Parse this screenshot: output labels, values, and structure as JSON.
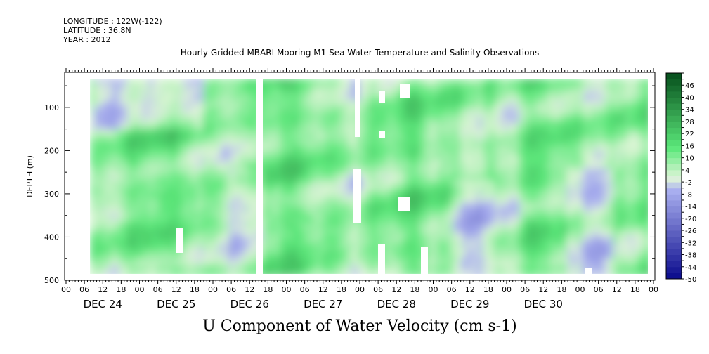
{
  "header": {
    "longitude": "LONGITUDE : 122W(-122)",
    "latitude": "LATITUDE : 36.8N",
    "year": "YEAR : 2012"
  },
  "chart_data": {
    "type": "heatmap",
    "title": "Hourly Gridded MBARI Mooring M1 Sea Water Temperature and Salinity Observations",
    "footer": "U Component of Water Velocity (cm s-1)",
    "ylabel": "DEPTH (m)",
    "ylim": [
      500,
      0
    ],
    "y_ticks": [
      "100",
      "200",
      "300",
      "400",
      "500"
    ],
    "x_hour_labels": [
      "00",
      "06",
      "12",
      "18",
      "00",
      "06",
      "12",
      "18",
      "00",
      "06",
      "12",
      "18",
      "00",
      "06",
      "12",
      "18",
      "00",
      "06",
      "12",
      "18",
      "00",
      "06",
      "12",
      "18",
      "00",
      "06",
      "12",
      "18",
      "00",
      "06",
      "12",
      "18",
      "00"
    ],
    "x_day_labels": [
      "DEC 24",
      "DEC 25",
      "DEC 26",
      "DEC 27",
      "DEC 28",
      "DEC 29",
      "DEC 30"
    ],
    "colorbar_labels": [
      "46",
      "40",
      "34",
      "28",
      "22",
      "16",
      "10",
      "4",
      "-2",
      "-8",
      "-14",
      "-20",
      "-26",
      "-32",
      "-38",
      "-44",
      "-50"
    ],
    "colorbar_range": [
      -50,
      52
    ],
    "colorbar_step": 3,
    "colors": {
      "strong_negative": "#0a0a8c",
      "weak_negative": "#aab0f0",
      "zero": "#dff5d8",
      "weak_positive": "#5be87a",
      "strong_positive": "#064e1c"
    }
  }
}
